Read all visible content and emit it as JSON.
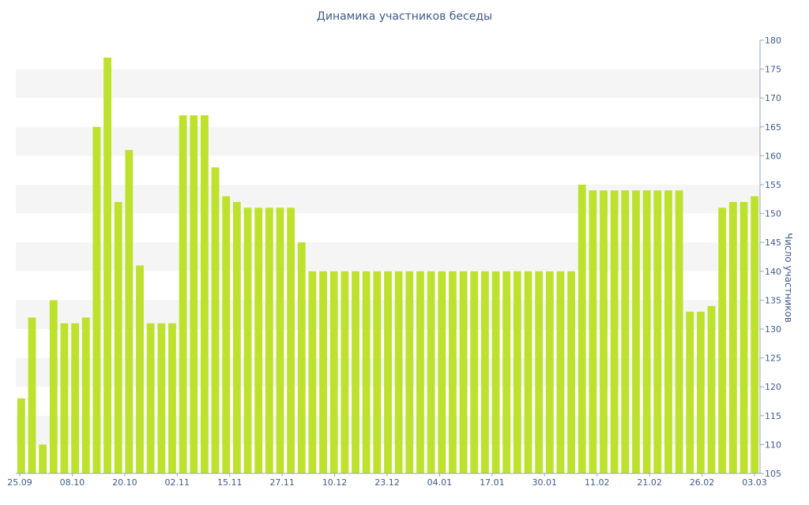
{
  "chart_data": {
    "type": "bar",
    "title": "Динамика участников беседы",
    "xlabel": "",
    "ylabel": "Число участников",
    "ylim": [
      105,
      180
    ],
    "yticks": [
      105,
      110,
      115,
      120,
      125,
      130,
      135,
      140,
      145,
      150,
      155,
      160,
      165,
      170,
      175,
      180
    ],
    "x_tick_labels": [
      "25.09",
      "08.10",
      "20.10",
      "02.11",
      "15.11",
      "27.11",
      "10.12",
      "23.12",
      "04.01",
      "17.01",
      "30.01",
      "11.02",
      "21.02",
      "26.02",
      "03.03"
    ],
    "grid": "alternating horizontal bands",
    "legend": "none",
    "bar_color": "#bde12d",
    "text_color": "#3d5a8a",
    "values": [
      118,
      132,
      110,
      135,
      131,
      131,
      132,
      165,
      177,
      152,
      161,
      141,
      131,
      131,
      131,
      167,
      167,
      167,
      158,
      153,
      152,
      151,
      151,
      151,
      151,
      151,
      145,
      140,
      140,
      140,
      140,
      140,
      140,
      140,
      140,
      140,
      140,
      140,
      140,
      140,
      140,
      140,
      140,
      140,
      140,
      140,
      140,
      140,
      140,
      140,
      140,
      140,
      155,
      154,
      154,
      154,
      154,
      154,
      154,
      154,
      154,
      154,
      133,
      133,
      134,
      151,
      152,
      152,
      153
    ]
  }
}
